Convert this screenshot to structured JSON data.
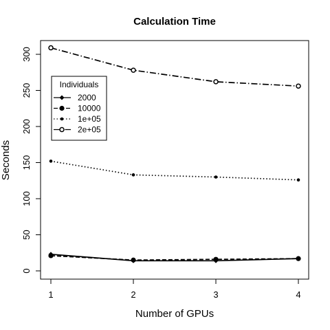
{
  "chart_data": {
    "type": "line",
    "title": "Calculation Time",
    "xlabel": "Number of GPUs",
    "ylabel": "Seconds",
    "x": [
      1,
      2,
      3,
      4
    ],
    "xlim": [
      1,
      4
    ],
    "ylim": [
      0,
      310
    ],
    "xticks": [
      "1",
      "2",
      "3",
      "4"
    ],
    "yticks": [
      "0",
      "50",
      "100",
      "150",
      "200",
      "250",
      "300"
    ],
    "legend": {
      "title": "Individuals",
      "placement": "upper-left"
    },
    "grid": false,
    "series": [
      {
        "name": "2000",
        "values": [
          23,
          14,
          14,
          17
        ],
        "line_style": "solid",
        "marker": "diamond"
      },
      {
        "name": "10000",
        "values": [
          21,
          15,
          16,
          17
        ],
        "line_style": "dashed",
        "marker": "filled-circle"
      },
      {
        "name": "1e+05",
        "values": [
          152,
          133,
          130,
          126
        ],
        "line_style": "dotted",
        "marker": "small-dot"
      },
      {
        "name": "2e+05",
        "values": [
          309,
          278,
          262,
          256
        ],
        "line_style": "dash-dot",
        "marker": "open-circle"
      }
    ]
  }
}
